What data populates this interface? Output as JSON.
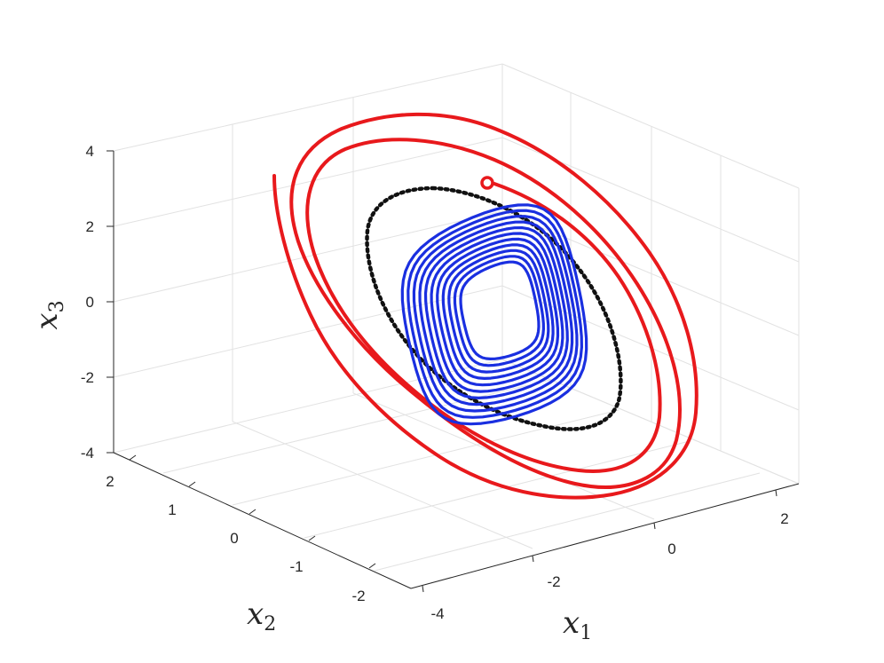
{
  "chart_data": {
    "type": "line",
    "view": "3d",
    "title": "",
    "axes": {
      "x1": {
        "label": "x",
        "subscript": "1",
        "range": [
          -4,
          3
        ],
        "ticks": [
          -4,
          -2,
          0,
          2
        ],
        "tick_labels": [
          "-4",
          "-2",
          "0",
          "2"
        ]
      },
      "x2": {
        "label": "x",
        "subscript": "2",
        "range": [
          -2.5,
          2.5
        ],
        "ticks": [
          -2,
          -1,
          0,
          1,
          2
        ],
        "tick_labels": [
          "-2",
          "-1",
          "0",
          "1",
          "2"
        ]
      },
      "x3": {
        "label": "x",
        "subscript": "3",
        "range": [
          -4,
          4
        ],
        "ticks": [
          -4,
          -2,
          0,
          2,
          4
        ],
        "tick_labels": [
          "-4",
          "-2",
          "0",
          "2",
          "4"
        ]
      }
    },
    "grid": true,
    "legend": "none",
    "series": [
      {
        "style": "solid",
        "color": "#e8191c",
        "description": "outer spiral trajectory",
        "start_marker": "circle"
      },
      {
        "style": "dotted",
        "color": "#111111",
        "description": "closed orbit"
      },
      {
        "style": "solid",
        "color": "#1a2fe0",
        "description": "inner converging spiral"
      }
    ]
  }
}
